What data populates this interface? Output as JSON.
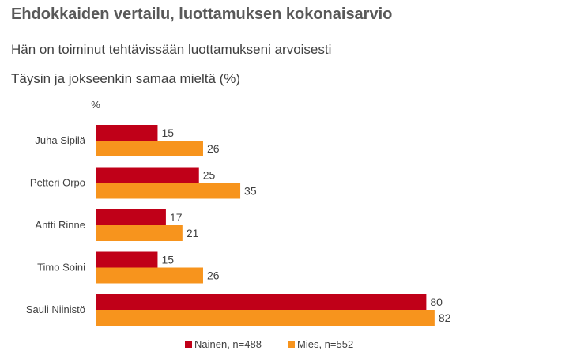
{
  "header": {
    "title": "Ehdokkaiden vertailu, luottamuksen kokonaisarvio",
    "subtitle": "Hän on toiminut tehtävissään luottamukseni arvoisesti",
    "subtitle2": "Täysin ja jokseenkin samaa mieltä (%)"
  },
  "chart_data": {
    "type": "bar",
    "orientation": "horizontal",
    "unit_label": "%",
    "categories": [
      "Juha Sipilä",
      "Petteri Orpo",
      "Antti Rinne",
      "Timo Soini",
      "Sauli Niinistö"
    ],
    "series": [
      {
        "name": "Nainen, n=488",
        "color": "#c00018",
        "values": [
          15,
          25,
          17,
          15,
          80
        ]
      },
      {
        "name": "Mies, n=552",
        "color": "#f7941d",
        "values": [
          26,
          35,
          21,
          26,
          82
        ]
      }
    ],
    "xlim": [
      0,
      100
    ],
    "grid": false,
    "legend_position": "bottom"
  }
}
